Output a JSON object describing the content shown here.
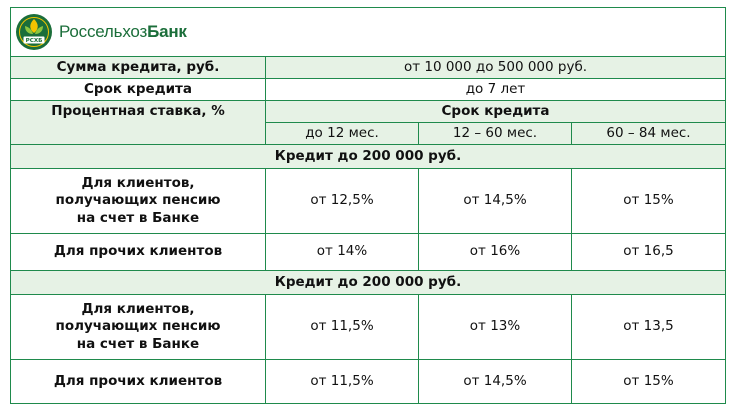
{
  "logo": {
    "brand_light": "Россельхоз",
    "brand_bold": "Банк",
    "emblem_text": "РСХБ"
  },
  "rows": {
    "amount": {
      "label": "Сумма кредита, руб.",
      "value": "от 10 000 до 500 000 руб."
    },
    "term": {
      "label": "Срок кредита",
      "value": "до 7 лет"
    },
    "rate": {
      "label": "Процентная ставка, %",
      "value": "Срок кредита"
    }
  },
  "periods": [
    "до 12 мес.",
    "12 – 60 мес.",
    "60 – 84 мес."
  ],
  "sections": [
    {
      "title": "Кредит до 200 000 руб.",
      "rows": [
        {
          "label_lines": [
            "Для клиентов,",
            "получающих пенсию",
            "на счет в Банке"
          ],
          "values": [
            "от 12,5%",
            "от 14,5%",
            "от 15%"
          ]
        },
        {
          "label_lines": [
            "Для прочих клиентов"
          ],
          "values": [
            "от 14%",
            "от 16%",
            "от 16,5"
          ]
        }
      ]
    },
    {
      "title": "Кредит до 200 000 руб.",
      "rows": [
        {
          "label_lines": [
            "Для клиентов,",
            "получающих пенсию",
            "на счет в Банке"
          ],
          "values": [
            "от 11,5%",
            "от 13%",
            "от 13,5"
          ]
        },
        {
          "label_lines": [
            "Для прочих клиентов"
          ],
          "values": [
            "от 11,5%",
            "от 14,5%",
            "от 15%"
          ]
        }
      ]
    }
  ],
  "colors": {
    "border": "#1f8a4c",
    "row_fill": "#e6f2e5",
    "logo_green": "#1b6e3a"
  }
}
